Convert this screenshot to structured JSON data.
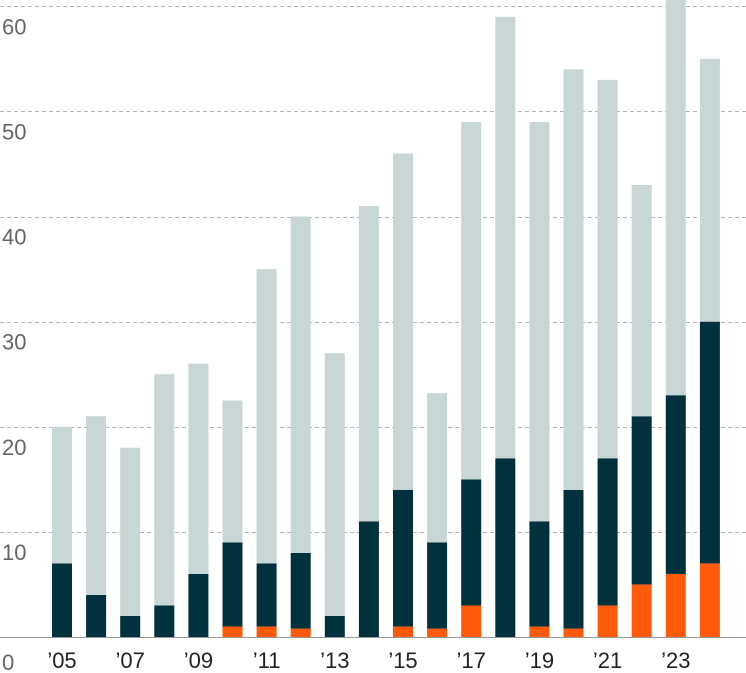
{
  "chart_data": {
    "type": "bar",
    "stacked": true,
    "categories": [
      "'05",
      "'06",
      "'07",
      "'08",
      "'09",
      "'10",
      "'11",
      "'12",
      "'13",
      "'14",
      "'15",
      "'16",
      "'17",
      "'18",
      "'19",
      "'20",
      "'21",
      "'22",
      "'23",
      "'24"
    ],
    "x_tick_labels": [
      "'05",
      "",
      "'07",
      "",
      "'09",
      "",
      "'11",
      "",
      "'13",
      "",
      "'15",
      "",
      "'17",
      "",
      "'19",
      "",
      "'21",
      "",
      "'23",
      ""
    ],
    "y_ticks": [
      0,
      10,
      20,
      30,
      40,
      50,
      60
    ],
    "ylim": [
      0,
      60.6
    ],
    "grid": "horizontal dashed",
    "series": [
      {
        "color": "#ff5a0a",
        "values": [
          0,
          0,
          0,
          0,
          0,
          1,
          1,
          0.8,
          0,
          0,
          1,
          0.8,
          3,
          0,
          1,
          0.8,
          3,
          5,
          6,
          7
        ]
      },
      {
        "color": "#00313c",
        "values": [
          7,
          4,
          2,
          3,
          6,
          8,
          6,
          7.2,
          2,
          11,
          13,
          8.2,
          12,
          17,
          10,
          13.2,
          14,
          16,
          17,
          23
        ]
      },
      {
        "color": "#c8d6d5",
        "values": [
          13,
          17,
          16,
          22,
          20,
          13.5,
          28,
          32,
          25,
          30,
          32,
          14.2,
          34,
          42,
          38,
          40,
          36,
          22,
          38,
          25
        ]
      }
    ]
  }
}
